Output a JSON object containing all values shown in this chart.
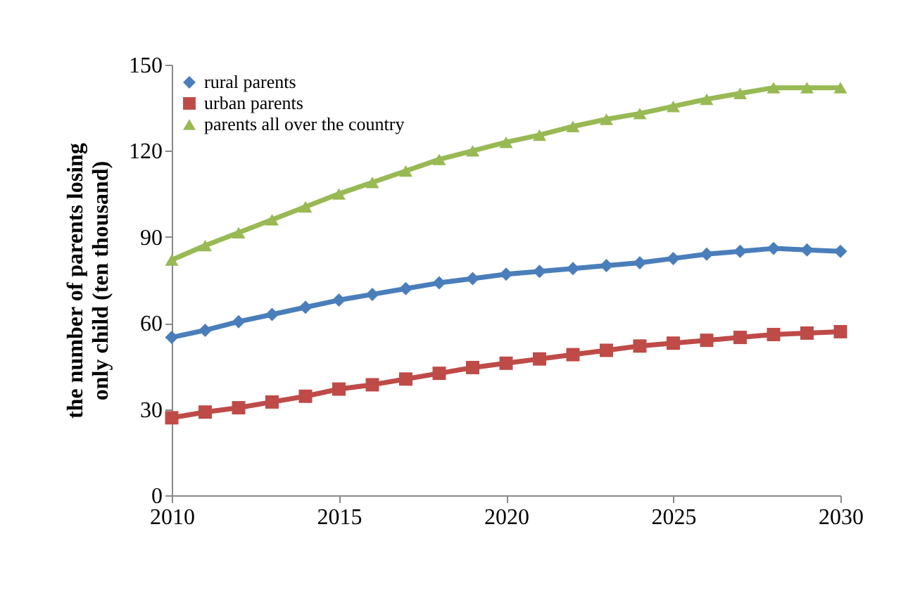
{
  "chart_data": {
    "type": "line",
    "ylabel": "the number of parents losing only child (ten thousand)",
    "x": [
      2010,
      2011,
      2012,
      2013,
      2014,
      2015,
      2016,
      2017,
      2018,
      2019,
      2020,
      2021,
      2022,
      2023,
      2024,
      2025,
      2026,
      2027,
      2028,
      2029,
      2030
    ],
    "series": [
      {
        "name": "rural parents",
        "color": "#4a7ebb",
        "marker": "diamond",
        "values": [
          55,
          57.5,
          60.5,
          63,
          65.5,
          68,
          70,
          72,
          74,
          75.5,
          77,
          78,
          79,
          80,
          81,
          82.5,
          84,
          85,
          86,
          85.5,
          85
        ]
      },
      {
        "name": "urban parents",
        "color": "#be4b48",
        "marker": "square",
        "values": [
          27,
          29,
          30.5,
          32.5,
          34.5,
          37,
          38.5,
          40.5,
          42.5,
          44.5,
          46,
          47.5,
          49,
          50.5,
          52,
          53,
          54,
          55,
          56,
          56.5,
          57
        ]
      },
      {
        "name": "parents all over the country",
        "color": "#98b954",
        "marker": "triangle",
        "values": [
          82,
          87,
          91.5,
          96,
          100.5,
          105,
          109,
          113,
          117,
          120,
          123,
          125.5,
          128.5,
          131,
          133,
          135.5,
          138,
          140,
          142,
          142,
          142
        ]
      }
    ],
    "xlim": [
      2010,
      2030
    ],
    "xticks": [
      2010,
      2015,
      2020,
      2025,
      2030
    ],
    "ylim": [
      0,
      150
    ],
    "yticks": [
      0,
      30,
      60,
      90,
      120,
      150
    ],
    "grid": false,
    "legend": "top left"
  }
}
